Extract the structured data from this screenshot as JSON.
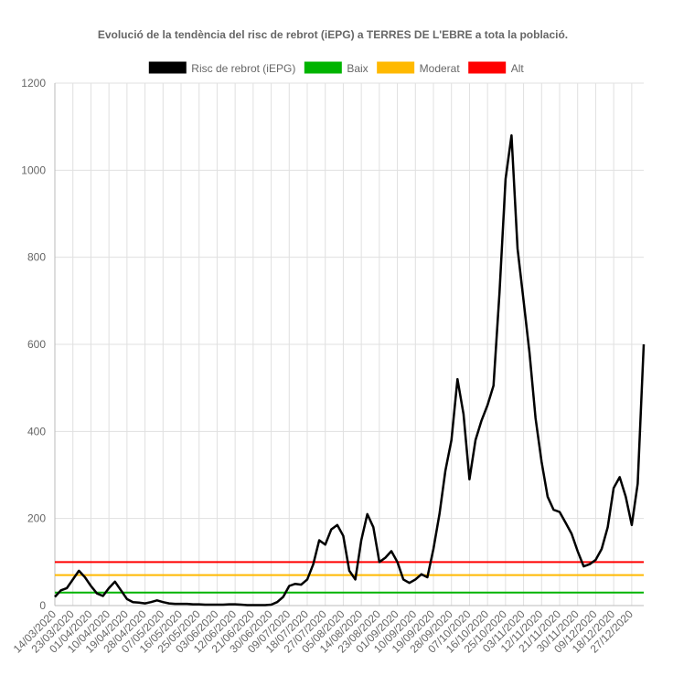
{
  "chart_data": {
    "type": "line",
    "title": "Evolució de la tendència del risc de rebrot (iEPG) a TERRES DE L'EBRE a tota la població.",
    "categories": [
      "14/03/2020",
      null,
      null,
      "23/03/2020",
      null,
      null,
      "01/04/2020",
      null,
      null,
      "10/04/2020",
      null,
      null,
      "19/04/2020",
      null,
      null,
      "28/04/2020",
      null,
      null,
      "07/05/2020",
      null,
      null,
      "16/05/2020",
      null,
      null,
      "25/05/2020",
      null,
      null,
      "03/06/2020",
      null,
      null,
      "12/06/2020",
      null,
      null,
      "21/06/2020",
      null,
      null,
      "30/06/2020",
      null,
      null,
      "09/07/2020",
      null,
      null,
      "18/07/2020",
      null,
      null,
      "27/07/2020",
      null,
      null,
      "05/08/2020",
      null,
      null,
      "14/08/2020",
      null,
      null,
      "23/08/2020",
      null,
      null,
      "01/09/2020",
      null,
      null,
      "10/09/2020",
      null,
      null,
      "19/09/2020",
      null,
      null,
      "28/09/2020",
      null,
      null,
      "07/10/2020",
      null,
      null,
      "16/10/2020",
      null,
      null,
      "25/10/2020",
      null,
      null,
      "03/11/2020",
      null,
      null,
      "12/11/2020",
      null,
      null,
      "21/11/2020",
      null,
      null,
      "30/11/2020",
      null,
      null,
      "09/12/2020",
      null,
      null,
      "18/12/2020",
      null,
      null,
      "27/12/2020",
      null,
      null
    ],
    "series": [
      {
        "name": "Risc de rebrot (iEPG)",
        "color": "#000000",
        "values": [
          20,
          35,
          40,
          60,
          80,
          65,
          45,
          28,
          22,
          40,
          55,
          35,
          15,
          8,
          7,
          5,
          8,
          12,
          8,
          5,
          4,
          4,
          4,
          3,
          3,
          2,
          2,
          2,
          2,
          3,
          3,
          2,
          1,
          1,
          1,
          1,
          2,
          8,
          20,
          45,
          50,
          48,
          60,
          95,
          150,
          140,
          175,
          185,
          160,
          80,
          60,
          150,
          210,
          180,
          100,
          110,
          125,
          100,
          60,
          52,
          60,
          72,
          65,
          130,
          210,
          310,
          380,
          520,
          440,
          290,
          380,
          425,
          460,
          505,
          720,
          980,
          1080,
          820,
          700,
          580,
          430,
          330,
          250,
          220,
          215,
          190,
          165,
          125,
          90,
          95,
          105,
          130,
          180,
          270,
          295,
          250,
          185,
          280,
          600
        ]
      }
    ],
    "thresholds": [
      {
        "name": "Baix",
        "color": "#00b400",
        "value": 30
      },
      {
        "name": "Moderat",
        "color": "#ffb900",
        "value": 70
      },
      {
        "name": "Alt",
        "color": "#ff0000",
        "value": 100
      }
    ],
    "ylim": [
      0,
      1200
    ],
    "yticks": [
      0,
      200,
      400,
      600,
      800,
      1000,
      1200
    ],
    "grid": true
  }
}
